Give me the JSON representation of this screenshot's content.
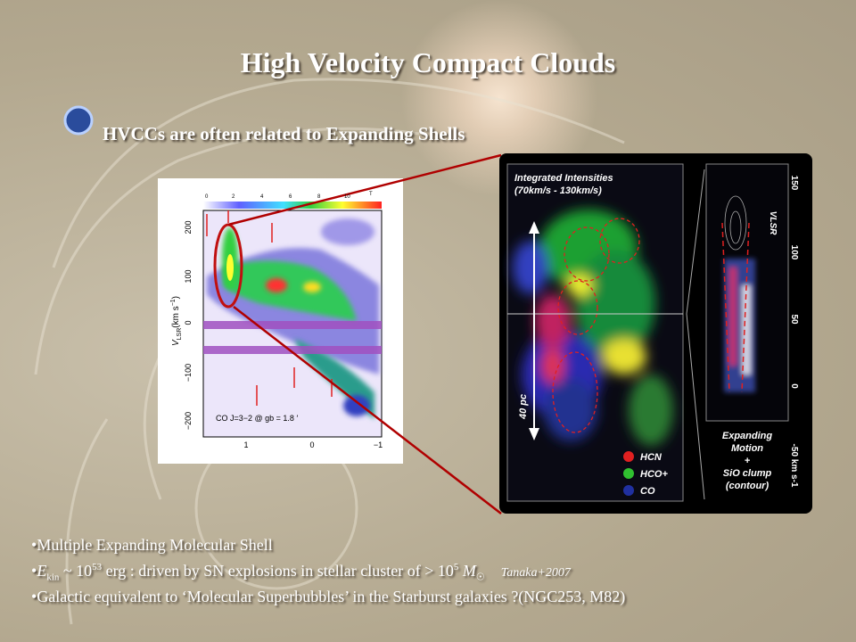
{
  "slide": {
    "title": "High Velocity Compact Clouds",
    "subtitle": "HVCCs are often related to Expanding Shells",
    "figure_left": {
      "colorbar_ticks": [
        "0",
        "2",
        "4",
        "6",
        "8",
        "10"
      ],
      "colorbar_unit": "T",
      "y_label": "V",
      "y_label_sub": "LSR",
      "y_label_unit": "(km s",
      "y_label_exp": "−1",
      "y_label_close": ")",
      "y_ticks": [
        "200",
        "100",
        "0",
        "−100",
        "−200"
      ],
      "x_ticks": [
        "1",
        "0",
        "−1"
      ],
      "annotation": "CO J=3−2 @ gb = 1.8 ′"
    },
    "figure_right": {
      "title": "Integrated Intensities",
      "range": "(70km/s - 130km/s)",
      "scale": "40 pc",
      "legend": [
        "HCN",
        "HCO+",
        "CO"
      ],
      "axis_ticks": [
        "150",
        "100",
        "50",
        "0",
        "-50 km s-1"
      ],
      "axis_label": "VLSR",
      "note": [
        "Expanding",
        "Motion",
        "+",
        "SiO clump",
        "(contour)"
      ]
    },
    "bullets": {
      "first": "Multiple Expanding Molecular Shell",
      "second": {
        "symbol": "E",
        "sub": "kin",
        "text1": " ~ 10",
        "exp1": "53",
        "text2": " erg   : driven by SN explosions in stellar cluster of  > 10",
        "exp2": "5",
        "text3": " M",
        "sun": "☉",
        "ref": "Tanaka+2007"
      },
      "third": "Galactic equivalent to ‘Molecular Superbubbles’ in the Starburst galaxies ?(NGC253, M82)"
    }
  }
}
